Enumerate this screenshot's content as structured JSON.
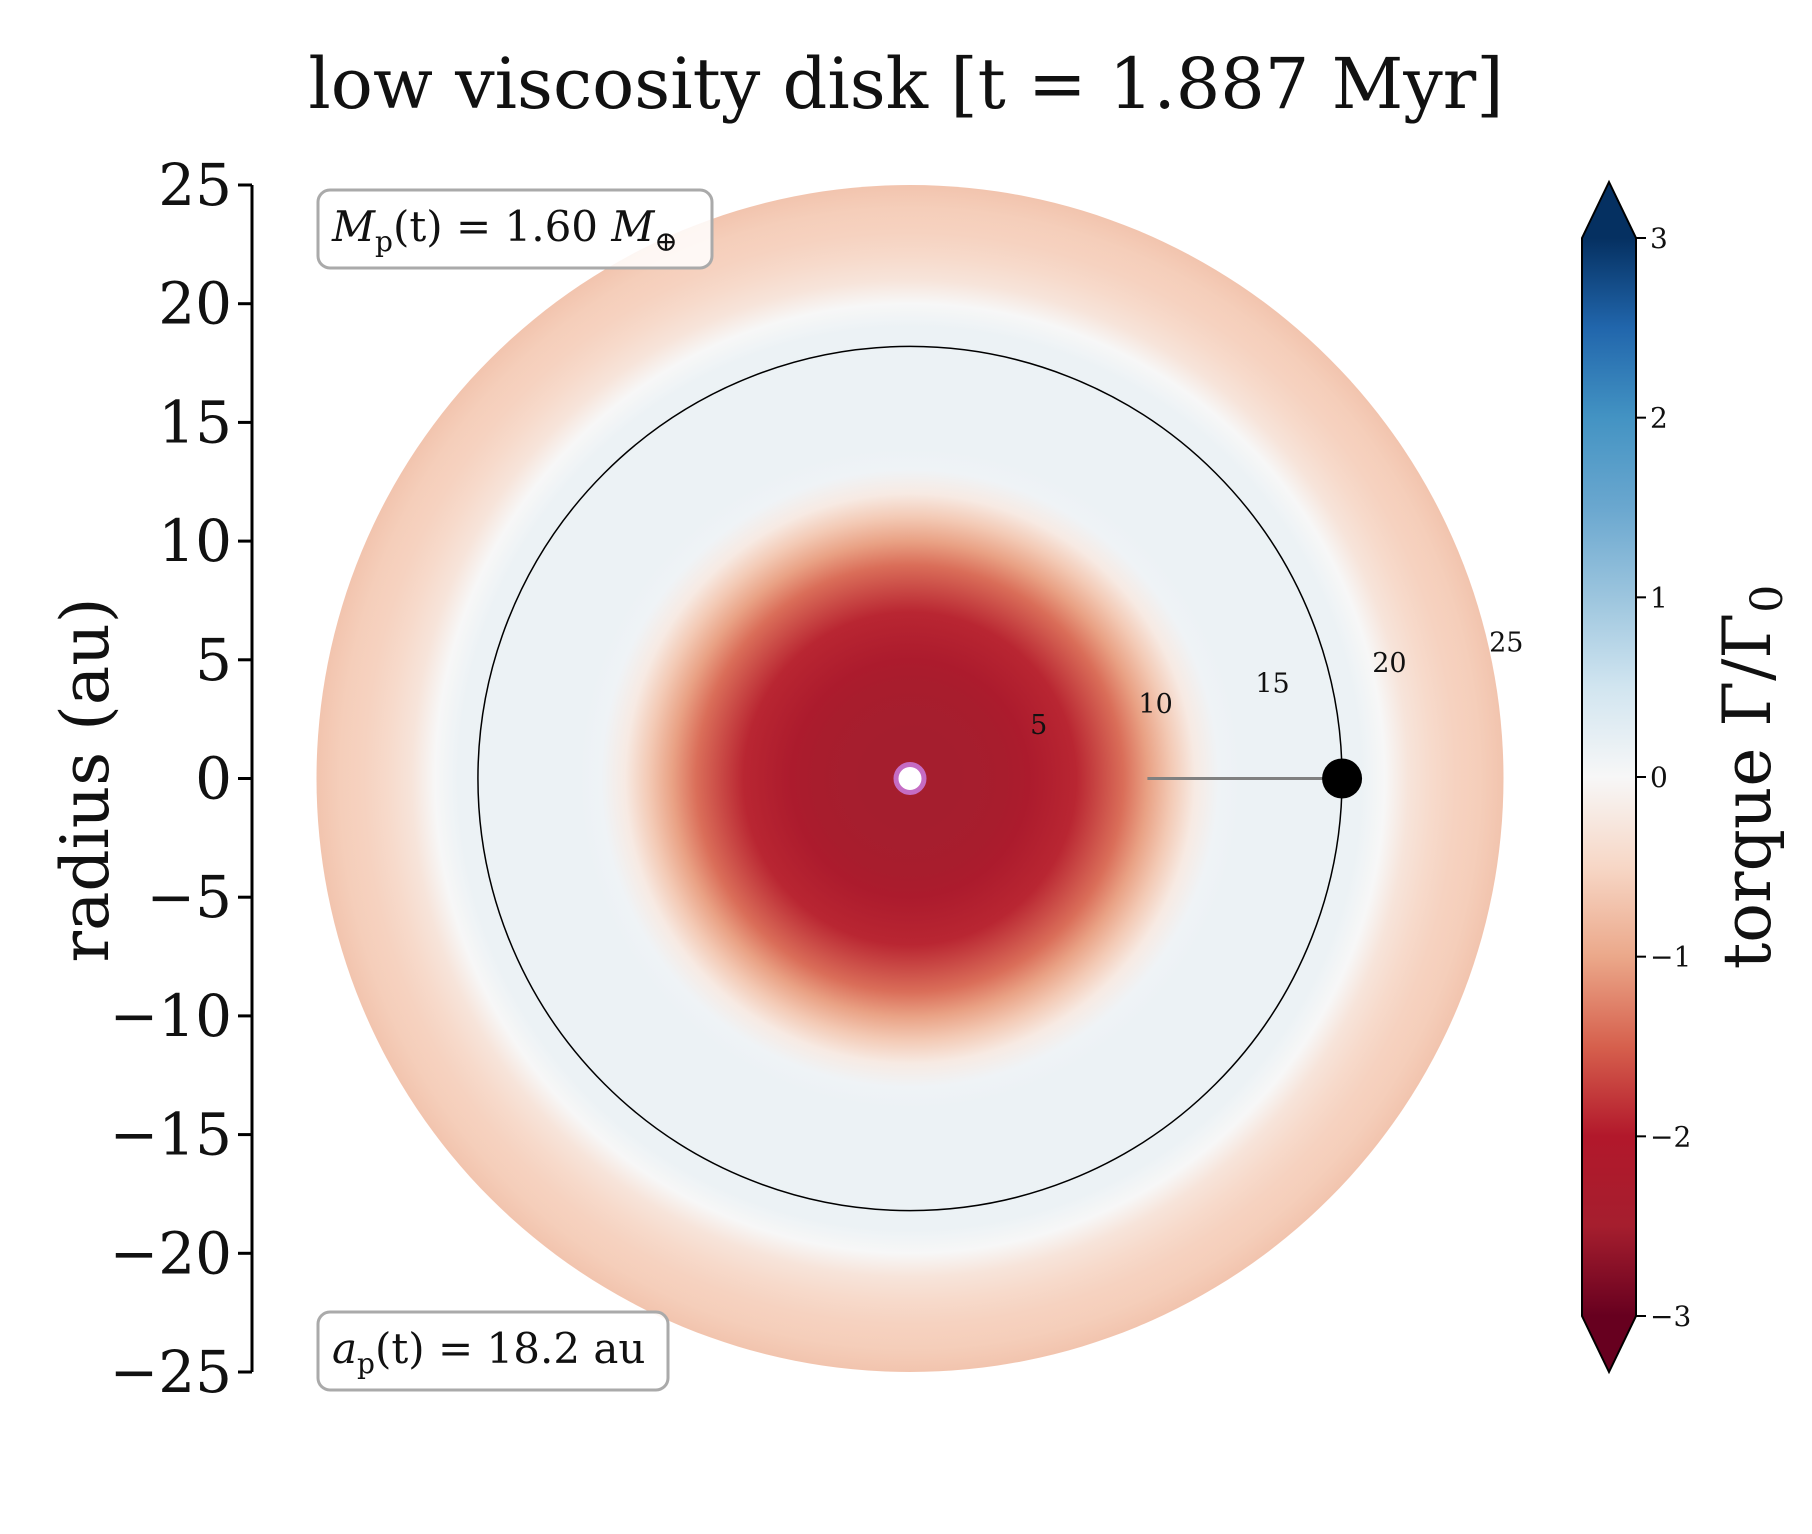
{
  "chart_data": {
    "type": "heatmap",
    "title": "low viscosity disk [t = 1.887 Myr]",
    "ylabel": "radius (au)",
    "xlabel": "",
    "ylim": [
      -25,
      25
    ],
    "xlim": [
      -25,
      25
    ],
    "y_ticks": [
      25,
      20,
      15,
      10,
      5,
      0,
      -5,
      -10,
      -15,
      -20,
      -25
    ],
    "y_tick_labels": [
      "25",
      "20",
      "15",
      "10",
      "5",
      "0",
      "−5",
      "−10",
      "−15",
      "−20",
      "−25"
    ],
    "disk_outer_radius_au": 25,
    "radial_tick_values": [
      5,
      10,
      15,
      20,
      25
    ],
    "radial_tick_labels": [
      "5",
      "10",
      "15",
      "20",
      "25"
    ],
    "planet_orbit_radius_au": 18.2,
    "gray_line_start_radius_au": 10,
    "torque_profile": {
      "r_au": [
        0,
        2,
        4,
        5,
        7,
        9,
        10,
        11,
        12,
        13,
        14,
        15,
        16,
        17,
        18,
        19,
        20,
        21,
        22,
        23,
        24,
        25
      ],
      "torque": [
        -2.5,
        -2.5,
        -2.4,
        -2.25,
        -1.9,
        -1.4,
        -1.05,
        -0.65,
        -0.2,
        0.1,
        0.15,
        0.15,
        0.15,
        0.15,
        0.15,
        0.15,
        0.0,
        -0.3,
        -0.45,
        -0.55,
        -0.6,
        -0.7
      ]
    },
    "annotations": {
      "mass_label": "M",
      "mass_subscript": "p",
      "mass_args": "(t) = 1.60 ",
      "mass_unit": "M",
      "mass_unit_symbol": "⊕",
      "sma_label": "a",
      "sma_subscript": "p",
      "sma_rest": "(t) = 18.2 au"
    },
    "colorbar": {
      "label": "torque Γ/Γ",
      "label_subscript": "0",
      "range": [
        -3,
        3
      ],
      "ticks": [
        3,
        2,
        1,
        0,
        -1,
        -2,
        -3
      ],
      "tick_labels": [
        "3",
        "2",
        "1",
        "0",
        "−1",
        "−2",
        "−3"
      ],
      "colormap": "RdBu",
      "extend": "both",
      "stops": [
        {
          "value": -3,
          "color": "#67001f"
        },
        {
          "value": -2.5,
          "color": "#a51e2e"
        },
        {
          "value": -2,
          "color": "#b2182b"
        },
        {
          "value": -1.5,
          "color": "#d6604d"
        },
        {
          "value": -1,
          "color": "#eba88a"
        },
        {
          "value": -0.5,
          "color": "#f7d7c6"
        },
        {
          "value": 0,
          "color": "#f7f7f7"
        },
        {
          "value": 0.5,
          "color": "#d1e5f0"
        },
        {
          "value": 1,
          "color": "#9cc5de"
        },
        {
          "value": 1.5,
          "color": "#6aa7cf"
        },
        {
          "value": 2,
          "color": "#4393c3"
        },
        {
          "value": 2.5,
          "color": "#2166ac"
        },
        {
          "value": 3,
          "color": "#053061"
        }
      ]
    },
    "center_star_color": "#c56cc4",
    "planet_color": "#000000",
    "orbit_color": "#000000",
    "radius_line_color": "#808080"
  }
}
